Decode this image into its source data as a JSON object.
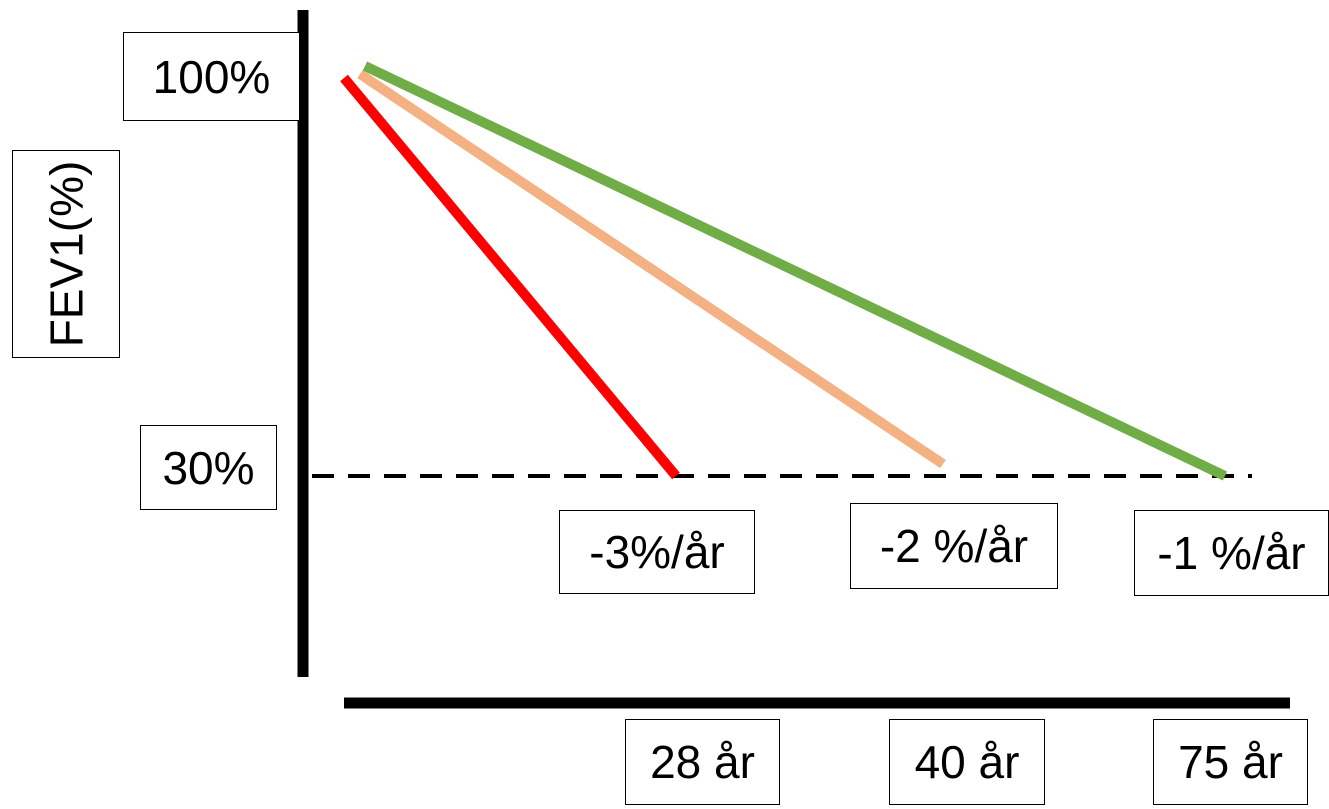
{
  "chart_data": {
    "type": "line",
    "ylabel": "FEV1(%)",
    "y_ticks": [
      "100%",
      "30%"
    ],
    "x_ticks": [
      "28 år",
      "40 år",
      "75 år"
    ],
    "threshold": {
      "value": 30,
      "style": "dashed"
    },
    "series": [
      {
        "name": "-3%/år",
        "color": "#ff0000",
        "start": 100,
        "end": 30,
        "end_label": "28 år"
      },
      {
        "name": "-2 %/år",
        "color": "#f4b183",
        "start": 100,
        "end": 30,
        "end_label": "40 år"
      },
      {
        "name": "-1 %/år",
        "color": "#70ad47",
        "start": 100,
        "end": 30,
        "end_label": "75 år"
      }
    ],
    "grid": false,
    "legend": "none"
  }
}
